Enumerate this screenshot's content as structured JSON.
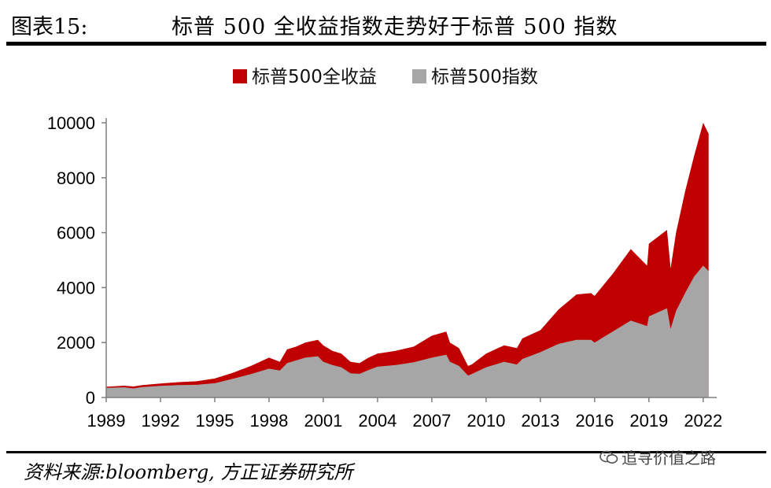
{
  "header": {
    "figure_label": "图表15:",
    "title": "标普 500 全收益指数走势好于标普 500 指数"
  },
  "footer": {
    "source": "资料来源:bloomberg, 方正证券研究所",
    "watermark": "追寻价值之路",
    "watermark_icon": "wechat-icon"
  },
  "chart_data": {
    "type": "area",
    "title": "",
    "xlabel": "",
    "ylabel": "",
    "xlim": [
      1989,
      2022.4
    ],
    "ylim": [
      0,
      10000
    ],
    "yticks": [
      0,
      2000,
      4000,
      6000,
      8000,
      10000
    ],
    "xticks": [
      1989,
      1992,
      1995,
      1998,
      2001,
      2004,
      2007,
      2010,
      2013,
      2016,
      2019,
      2022
    ],
    "grid": false,
    "legend_position": "top-center",
    "series": [
      {
        "name": "标普500全收益",
        "color": "#C00000",
        "x": [
          1989,
          1990,
          1990.5,
          1991,
          1992,
          1993,
          1994,
          1995,
          1996,
          1997,
          1998,
          1998.6,
          1999,
          1999.5,
          2000,
          2000.7,
          2001,
          2001.5,
          2002,
          2002.5,
          2003,
          2003.5,
          2004,
          2005,
          2006,
          2007,
          2007.8,
          2008,
          2008.5,
          2009,
          2009.2,
          2010,
          2011,
          2011.7,
          2012,
          2013,
          2014,
          2015,
          2015.8,
          2016,
          2017,
          2018,
          2018.9,
          2019,
          2020,
          2020.2,
          2020.5,
          2021,
          2021.5,
          2022,
          2022.3
        ],
        "values": [
          390,
          430,
          400,
          450,
          510,
          560,
          590,
          690,
          900,
          1150,
          1450,
          1300,
          1750,
          1850,
          2000,
          2100,
          1900,
          1700,
          1600,
          1300,
          1250,
          1450,
          1600,
          1700,
          1850,
          2250,
          2400,
          2000,
          1800,
          1150,
          1200,
          1600,
          1900,
          1800,
          2150,
          2450,
          3200,
          3750,
          3800,
          3700,
          4500,
          5400,
          4800,
          5600,
          6100,
          4700,
          6000,
          7500,
          8800,
          10000,
          9600
        ]
      },
      {
        "name": "标普500指数",
        "color": "#A6A6A6",
        "x": [
          1989,
          1990,
          1990.5,
          1991,
          1992,
          1993,
          1994,
          1995,
          1996,
          1997,
          1998,
          1998.6,
          1999,
          1999.5,
          2000,
          2000.7,
          2001,
          2001.5,
          2002,
          2002.5,
          2003,
          2003.5,
          2004,
          2005,
          2006,
          2007,
          2007.8,
          2008,
          2008.5,
          2009,
          2009.2,
          2010,
          2011,
          2011.7,
          2012,
          2013,
          2014,
          2015,
          2015.8,
          2016,
          2017,
          2018,
          2018.9,
          2019,
          2020,
          2020.2,
          2020.5,
          2021,
          2021.5,
          2022,
          2022.3
        ],
        "values": [
          350,
          370,
          330,
          380,
          420,
          450,
          460,
          520,
          680,
          850,
          1050,
          980,
          1250,
          1350,
          1450,
          1500,
          1300,
          1180,
          1100,
          880,
          860,
          1000,
          1120,
          1180,
          1280,
          1450,
          1560,
          1300,
          1150,
          800,
          850,
          1100,
          1300,
          1200,
          1400,
          1650,
          1950,
          2100,
          2100,
          2000,
          2400,
          2800,
          2600,
          2950,
          3250,
          2500,
          3150,
          3800,
          4400,
          4800,
          4600
        ]
      }
    ]
  }
}
